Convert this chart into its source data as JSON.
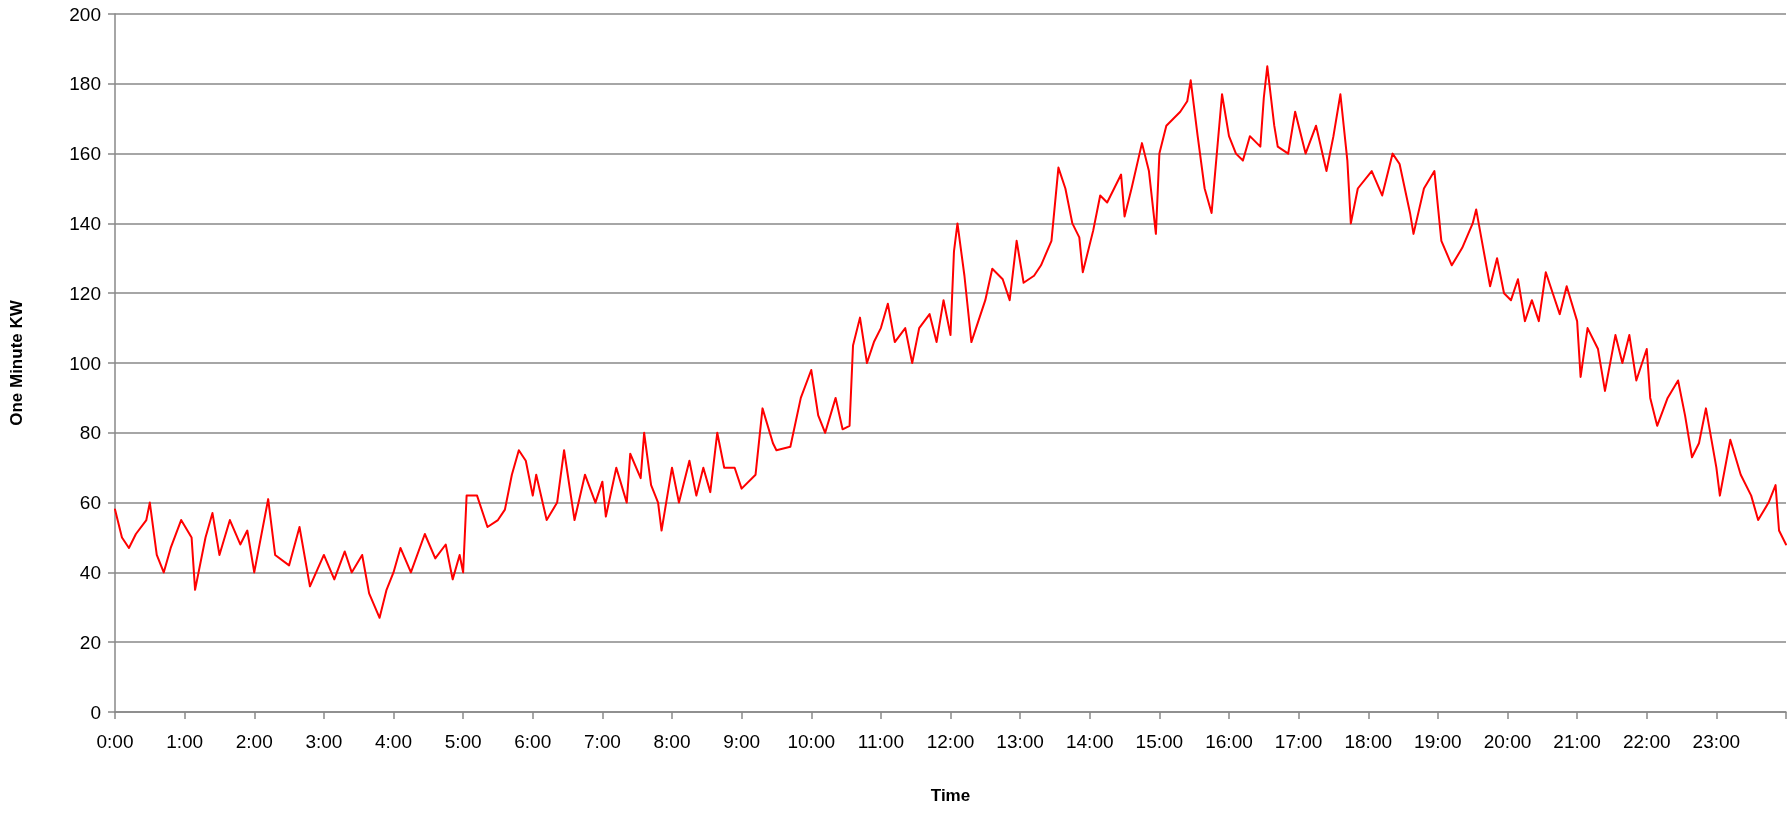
{
  "chart_data": {
    "type": "line",
    "xlabel": "Time",
    "ylabel": "One Minute KW",
    "x": [
      0,
      0.1,
      0.2,
      0.3,
      0.45,
      0.5,
      0.6,
      0.7,
      0.8,
      0.95,
      1.1,
      1.15,
      1.3,
      1.4,
      1.5,
      1.65,
      1.8,
      1.9,
      2.0,
      2.2,
      2.3,
      2.5,
      2.65,
      2.8,
      3.0,
      3.15,
      3.3,
      3.4,
      3.55,
      3.65,
      3.8,
      3.9,
      4.0,
      4.1,
      4.25,
      4.45,
      4.6,
      4.75,
      4.85,
      4.95,
      5.0,
      5.05,
      5.2,
      5.35,
      5.5,
      5.6,
      5.7,
      5.8,
      5.9,
      6.0,
      6.05,
      6.2,
      6.35,
      6.45,
      6.6,
      6.75,
      6.9,
      7.0,
      7.05,
      7.2,
      7.35,
      7.4,
      7.55,
      7.6,
      7.7,
      7.8,
      7.85,
      8.0,
      8.1,
      8.25,
      8.35,
      8.45,
      8.55,
      8.65,
      8.75,
      8.9,
      9.0,
      9.2,
      9.3,
      9.45,
      9.5,
      9.7,
      9.85,
      10.0,
      10.1,
      10.2,
      10.35,
      10.45,
      10.55,
      10.6,
      10.7,
      10.8,
      10.9,
      11.0,
      11.1,
      11.2,
      11.35,
      11.45,
      11.55,
      11.7,
      11.8,
      11.9,
      12.0,
      12.05,
      12.1,
      12.2,
      12.3,
      12.4,
      12.5,
      12.6,
      12.75,
      12.85,
      12.95,
      13.05,
      13.2,
      13.3,
      13.45,
      13.55,
      13.65,
      13.75,
      13.85,
      13.9,
      14.05,
      14.15,
      14.25,
      14.35,
      14.45,
      14.5,
      14.6,
      14.75,
      14.85,
      14.95,
      15.0,
      15.1,
      15.2,
      15.3,
      15.4,
      15.45,
      15.55,
      15.65,
      15.75,
      15.9,
      16.0,
      16.1,
      16.2,
      16.3,
      16.45,
      16.5,
      16.55,
      16.65,
      16.7,
      16.85,
      16.95,
      17.1,
      17.25,
      17.4,
      17.5,
      17.6,
      17.7,
      17.75,
      17.85,
      18.05,
      18.2,
      18.35,
      18.45,
      18.6,
      18.65,
      18.8,
      18.95,
      19.05,
      19.2,
      19.35,
      19.5,
      19.55,
      19.65,
      19.75,
      19.85,
      19.95,
      20.05,
      20.15,
      20.25,
      20.35,
      20.45,
      20.55,
      20.65,
      20.75,
      20.85,
      21.0,
      21.05,
      21.15,
      21.3,
      21.4,
      21.55,
      21.65,
      21.75,
      21.85,
      22.0,
      22.05,
      22.15,
      22.3,
      22.45,
      22.55,
      22.65,
      22.75,
      22.85,
      23.0,
      23.05,
      23.2,
      23.35,
      23.5,
      23.6,
      23.75,
      23.85,
      23.9,
      24.0
    ],
    "series": [
      {
        "color": "#ff0000",
        "values": [
          58,
          50,
          47,
          51,
          55,
          60,
          45,
          40,
          47,
          55,
          50,
          35,
          50,
          57,
          45,
          55,
          48,
          52,
          40,
          61,
          45,
          42,
          53,
          36,
          45,
          38,
          46,
          40,
          45,
          34,
          27,
          35,
          40,
          47,
          40,
          51,
          44,
          48,
          38,
          45,
          40,
          62,
          62,
          53,
          55,
          58,
          68,
          75,
          72,
          62,
          68,
          55,
          60,
          75,
          55,
          68,
          60,
          66,
          56,
          70,
          60,
          74,
          67,
          80,
          65,
          60,
          52,
          70,
          60,
          72,
          62,
          70,
          63,
          80,
          70,
          70,
          64,
          68,
          87,
          77,
          75,
          76,
          90,
          98,
          85,
          80,
          90,
          81,
          82,
          105,
          113,
          100,
          106,
          110,
          117,
          106,
          110,
          100,
          110,
          114,
          106,
          118,
          108,
          132,
          140,
          125,
          106,
          112,
          118,
          127,
          124,
          118,
          135,
          123,
          125,
          128,
          135,
          156,
          150,
          140,
          136,
          126,
          138,
          148,
          146,
          150,
          154,
          142,
          150,
          163,
          155,
          137,
          160,
          168,
          170,
          172,
          175,
          181,
          165,
          150,
          143,
          177,
          165,
          160,
          158,
          165,
          162,
          176,
          185,
          168,
          162,
          160,
          172,
          160,
          168,
          155,
          165,
          177,
          158,
          140,
          150,
          155,
          148,
          160,
          157,
          143,
          137,
          150,
          155,
          135,
          128,
          133,
          140,
          144,
          133,
          122,
          130,
          120,
          118,
          124,
          112,
          118,
          112,
          126,
          120,
          114,
          122,
          112,
          96,
          110,
          104,
          92,
          108,
          100,
          108,
          95,
          104,
          90,
          82,
          90,
          95,
          85,
          73,
          77,
          87,
          70,
          62,
          78,
          68,
          62,
          55,
          60,
          65,
          52,
          48
        ]
      }
    ],
    "xlim": [
      0,
      24
    ],
    "xticks": [
      {
        "value": 0,
        "label": "0:00"
      },
      {
        "value": 1,
        "label": "1:00"
      },
      {
        "value": 2,
        "label": "2:00"
      },
      {
        "value": 3,
        "label": "3:00"
      },
      {
        "value": 4,
        "label": "4:00"
      },
      {
        "value": 5,
        "label": "5:00"
      },
      {
        "value": 6,
        "label": "6:00"
      },
      {
        "value": 7,
        "label": "7:00"
      },
      {
        "value": 8,
        "label": "8:00"
      },
      {
        "value": 9,
        "label": "9:00"
      },
      {
        "value": 10,
        "label": "10:00"
      },
      {
        "value": 11,
        "label": "11:00"
      },
      {
        "value": 12,
        "label": "12:00"
      },
      {
        "value": 13,
        "label": "13:00"
      },
      {
        "value": 14,
        "label": "14:00"
      },
      {
        "value": 15,
        "label": "15:00"
      },
      {
        "value": 16,
        "label": "16:00"
      },
      {
        "value": 17,
        "label": "17:00"
      },
      {
        "value": 18,
        "label": "18:00"
      },
      {
        "value": 19,
        "label": "19:00"
      },
      {
        "value": 20,
        "label": "20:00"
      },
      {
        "value": 21,
        "label": "21:00"
      },
      {
        "value": 22,
        "label": "22:00"
      },
      {
        "value": 23,
        "label": "23:00"
      },
      {
        "value": 24,
        "label": null
      }
    ],
    "ylim": [
      0,
      200
    ],
    "yticks": [
      0,
      20,
      40,
      60,
      80,
      100,
      120,
      140,
      160,
      180,
      200
    ],
    "grid": "y",
    "marker": "none",
    "line_style": "solid"
  }
}
